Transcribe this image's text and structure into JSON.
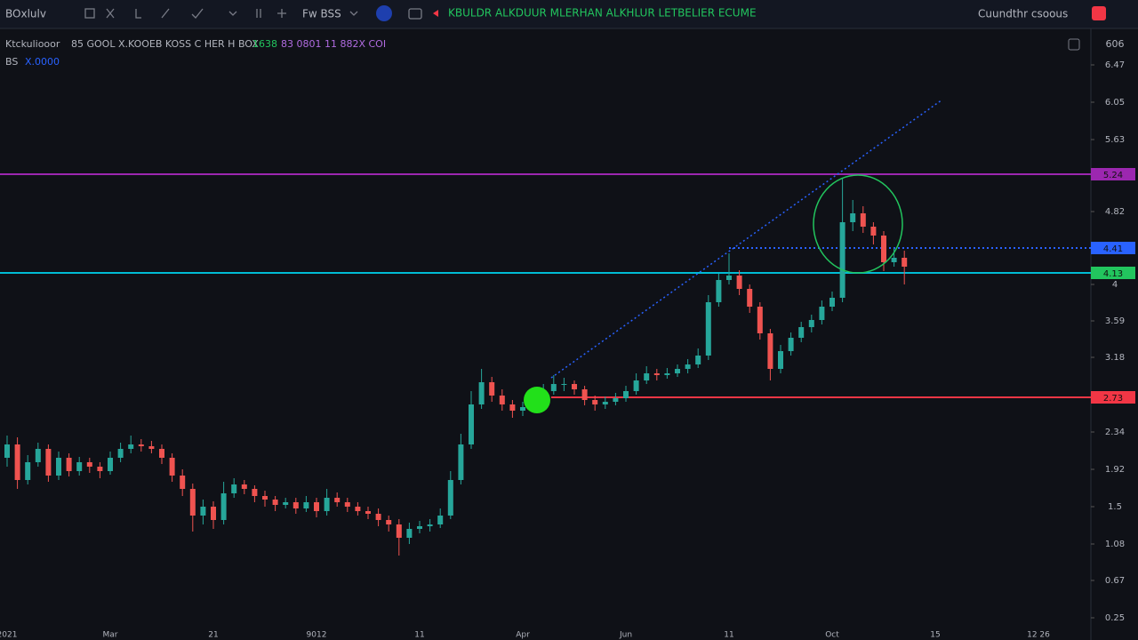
{
  "toolbar": {
    "symbol": "BOxlulv",
    "interval": "Fw BSS",
    "study_banner": "KBULDR ALKDUUR MLERHAN ALKHLUR LETBELIER ECUME",
    "account": "Cuundthr csoous"
  },
  "legend": {
    "name": "Ktckuliooor",
    "ohlc_text": "85 GOOL X.KOOEB KOSS C HER H BOX",
    "change": "1638",
    "volume_text": "83 0801 11 882X COI",
    "study": "BS",
    "study_value": "X.0000",
    "axis_unit": "606"
  },
  "chart_data": {
    "type": "candlestick",
    "categories": [
      "2021",
      null,
      null,
      null,
      null,
      null,
      null,
      null,
      null,
      null,
      "Mar",
      null,
      null,
      null,
      null,
      null,
      null,
      null,
      null,
      null,
      "21",
      null,
      null,
      null,
      null,
      null,
      null,
      null,
      null,
      null,
      "9012",
      null,
      null,
      null,
      null,
      null,
      null,
      null,
      null,
      null,
      "11",
      null,
      null,
      null,
      null,
      null,
      null,
      null,
      null,
      null,
      "Apr",
      null,
      null,
      null,
      null,
      null,
      null,
      null,
      null,
      null,
      "Jun",
      null,
      null,
      null,
      null,
      null,
      null,
      null,
      null,
      null,
      "11",
      null,
      null,
      null,
      null,
      null,
      null,
      null,
      null,
      null,
      "Oct",
      null,
      null,
      null,
      null,
      null,
      null,
      null,
      null,
      null,
      "15",
      null,
      null,
      null,
      null,
      null,
      null,
      null,
      null,
      null,
      "12 26"
    ],
    "ohlc": [
      [
        2.05,
        2.3,
        1.95,
        2.2
      ],
      [
        2.2,
        2.28,
        1.7,
        1.8
      ],
      [
        1.8,
        2.08,
        1.75,
        2.0
      ],
      [
        2.0,
        2.22,
        1.95,
        2.15
      ],
      [
        2.15,
        2.2,
        1.78,
        1.85
      ],
      [
        1.85,
        2.12,
        1.8,
        2.05
      ],
      [
        2.05,
        2.1,
        1.84,
        1.9
      ],
      [
        1.9,
        2.06,
        1.85,
        2.0
      ],
      [
        2.0,
        2.05,
        1.88,
        1.95
      ],
      [
        1.95,
        2.0,
        1.82,
        1.9
      ],
      [
        1.9,
        2.12,
        1.86,
        2.05
      ],
      [
        2.05,
        2.22,
        2.0,
        2.15
      ],
      [
        2.15,
        2.3,
        2.1,
        2.2
      ],
      [
        2.2,
        2.26,
        2.12,
        2.18
      ],
      [
        2.18,
        2.24,
        2.1,
        2.15
      ],
      [
        2.15,
        2.2,
        1.98,
        2.05
      ],
      [
        2.05,
        2.1,
        1.78,
        1.85
      ],
      [
        1.85,
        1.92,
        1.62,
        1.7
      ],
      [
        1.7,
        1.76,
        1.22,
        1.4
      ],
      [
        1.4,
        1.58,
        1.3,
        1.5
      ],
      [
        1.5,
        1.56,
        1.25,
        1.35
      ],
      [
        1.35,
        1.78,
        1.3,
        1.65
      ],
      [
        1.65,
        1.82,
        1.6,
        1.75
      ],
      [
        1.75,
        1.8,
        1.64,
        1.7
      ],
      [
        1.7,
        1.74,
        1.55,
        1.62
      ],
      [
        1.62,
        1.68,
        1.5,
        1.58
      ],
      [
        1.58,
        1.62,
        1.45,
        1.52
      ],
      [
        1.52,
        1.6,
        1.48,
        1.55
      ],
      [
        1.55,
        1.6,
        1.42,
        1.48
      ],
      [
        1.48,
        1.62,
        1.44,
        1.55
      ],
      [
        1.55,
        1.6,
        1.38,
        1.45
      ],
      [
        1.45,
        1.7,
        1.4,
        1.6
      ],
      [
        1.6,
        1.66,
        1.5,
        1.55
      ],
      [
        1.55,
        1.6,
        1.44,
        1.5
      ],
      [
        1.5,
        1.55,
        1.4,
        1.45
      ],
      [
        1.45,
        1.5,
        1.36,
        1.42
      ],
      [
        1.42,
        1.48,
        1.28,
        1.35
      ],
      [
        1.35,
        1.4,
        1.22,
        1.3
      ],
      [
        1.3,
        1.36,
        0.95,
        1.15
      ],
      [
        1.15,
        1.32,
        1.08,
        1.25
      ],
      [
        1.25,
        1.34,
        1.2,
        1.28
      ],
      [
        1.28,
        1.36,
        1.22,
        1.3
      ],
      [
        1.3,
        1.48,
        1.26,
        1.4
      ],
      [
        1.4,
        1.9,
        1.36,
        1.8
      ],
      [
        1.8,
        2.32,
        1.75,
        2.2
      ],
      [
        2.2,
        2.8,
        2.15,
        2.65
      ],
      [
        2.65,
        3.05,
        2.6,
        2.9
      ],
      [
        2.9,
        2.96,
        2.68,
        2.75
      ],
      [
        2.75,
        2.82,
        2.58,
        2.65
      ],
      [
        2.65,
        2.7,
        2.5,
        2.58
      ],
      [
        2.58,
        2.68,
        2.52,
        2.62
      ],
      [
        2.62,
        2.75,
        2.58,
        2.68
      ],
      [
        2.68,
        2.88,
        2.64,
        2.8
      ],
      [
        2.8,
        2.98,
        2.76,
        2.88
      ],
      [
        2.88,
        2.95,
        2.8,
        2.88
      ],
      [
        2.88,
        2.92,
        2.76,
        2.82
      ],
      [
        2.82,
        2.86,
        2.64,
        2.7
      ],
      [
        2.7,
        2.75,
        2.58,
        2.65
      ],
      [
        2.65,
        2.74,
        2.6,
        2.68
      ],
      [
        2.68,
        2.78,
        2.64,
        2.72
      ],
      [
        2.72,
        2.86,
        2.68,
        2.8
      ],
      [
        2.8,
        3.0,
        2.76,
        2.92
      ],
      [
        2.92,
        3.08,
        2.88,
        3.0
      ],
      [
        3.0,
        3.05,
        2.92,
        2.98
      ],
      [
        2.98,
        3.06,
        2.94,
        3.0
      ],
      [
        3.0,
        3.1,
        2.96,
        3.05
      ],
      [
        3.05,
        3.16,
        3.0,
        3.1
      ],
      [
        3.1,
        3.28,
        3.06,
        3.2
      ],
      [
        3.2,
        3.88,
        3.15,
        3.8
      ],
      [
        3.8,
        4.12,
        3.75,
        4.05
      ],
      [
        4.05,
        4.35,
        4.0,
        4.1
      ],
      [
        4.1,
        4.16,
        3.88,
        3.95
      ],
      [
        3.95,
        4.0,
        3.68,
        3.75
      ],
      [
        3.75,
        3.8,
        3.38,
        3.45
      ],
      [
        3.45,
        3.5,
        2.92,
        3.05
      ],
      [
        3.05,
        3.32,
        3.0,
        3.25
      ],
      [
        3.25,
        3.46,
        3.2,
        3.4
      ],
      [
        3.4,
        3.58,
        3.35,
        3.52
      ],
      [
        3.52,
        3.66,
        3.46,
        3.6
      ],
      [
        3.6,
        3.82,
        3.55,
        3.75
      ],
      [
        3.75,
        3.92,
        3.7,
        3.85
      ],
      [
        3.85,
        5.2,
        3.8,
        4.7
      ],
      [
        4.7,
        4.95,
        4.6,
        4.8
      ],
      [
        4.8,
        4.88,
        4.58,
        4.65
      ],
      [
        4.65,
        4.7,
        4.45,
        4.55
      ],
      [
        4.55,
        4.6,
        4.15,
        4.25
      ],
      [
        4.25,
        4.4,
        4.2,
        4.3
      ],
      [
        4.3,
        4.38,
        4.0,
        4.2
      ],
      null,
      null,
      null,
      null,
      null,
      null,
      null,
      null,
      null,
      null,
      null,
      null,
      null
    ],
    "up_color": "#26a69a",
    "down_color": "#ef5350",
    "ylim": [
      0.15,
      6.8
    ],
    "yticks": [
      6.47,
      6.05,
      5.63,
      4.82,
      4.0,
      3.59,
      3.18,
      2.34,
      1.92,
      1.5,
      1.08,
      0.67,
      0.25
    ],
    "grid": false,
    "levels": [
      {
        "value": 5.24,
        "color": "#9c27b0"
      },
      {
        "value": 4.41,
        "color": "#2962ff"
      },
      {
        "value": 4.13,
        "color": "#22c55e"
      },
      {
        "value": 2.73,
        "color": "#f23645"
      }
    ]
  }
}
